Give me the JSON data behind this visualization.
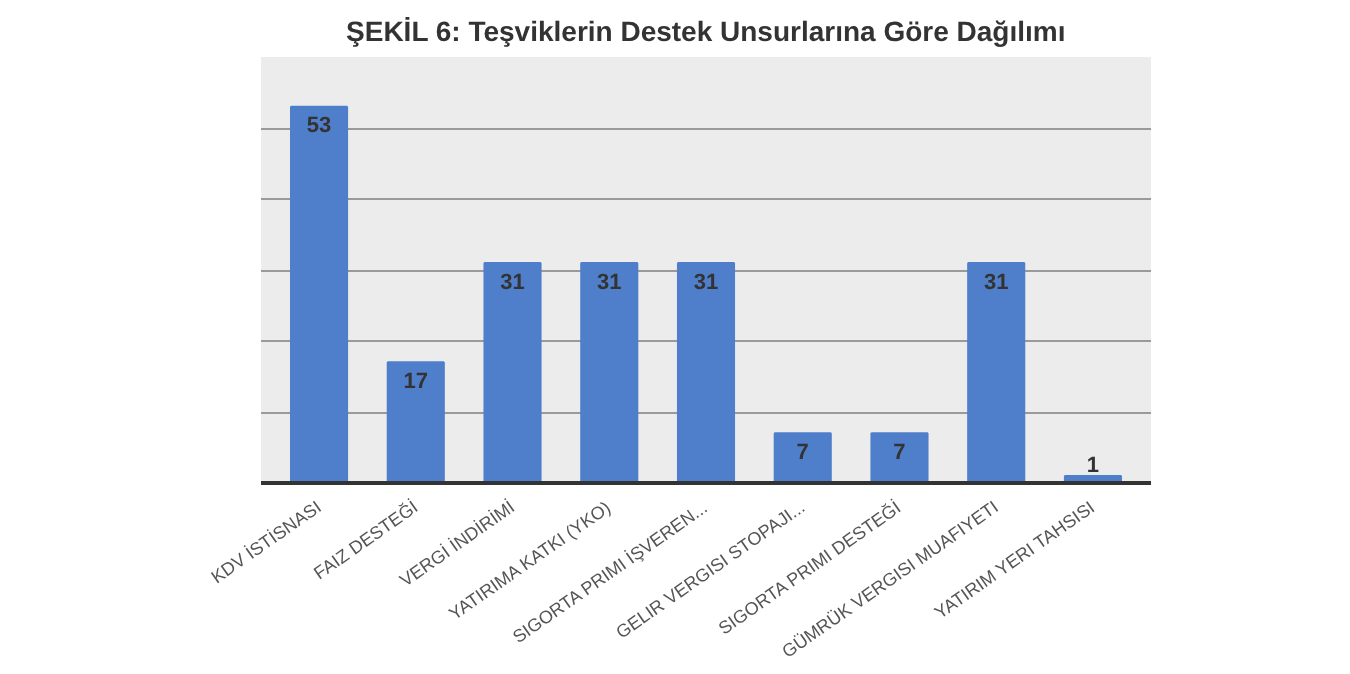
{
  "chart_data": {
    "type": "bar",
    "title": "ŞEKİL 6: Teşviklerin Destek Unsurlarına Göre Dağılımı",
    "categories": [
      "KDV İSTİSNASI",
      "FAIZ DESTEĞİ",
      "VERGİ İNDİRİMİ",
      "YATIRIMA KATKI (YKO)",
      "SIGORTA PRIMI İŞVEREN...",
      "GELIR VERGISI STOPAJI...",
      "SIGORTA PRIMI DESTEĞİ",
      "GÜMRÜK VERGISI MUAFIYETI",
      "YATIRIM YERI TAHSISI"
    ],
    "values": [
      53,
      17,
      31,
      31,
      31,
      7,
      7,
      31,
      1
    ],
    "color": "#4f7fcb",
    "ylim": [
      0,
      60
    ],
    "yticks": [
      0,
      10,
      20,
      30,
      40,
      50,
      60
    ],
    "grid": "y",
    "tick_labels": "x",
    "data_labels": true
  }
}
